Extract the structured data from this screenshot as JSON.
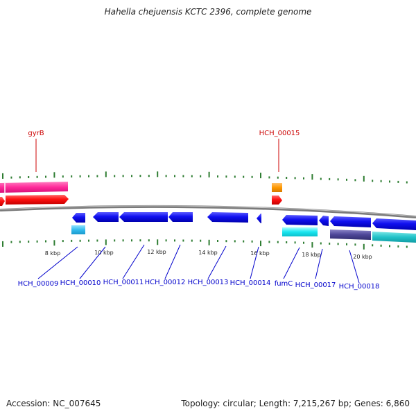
{
  "title": "Hahella chejuensis KCTC 2396, complete genome",
  "footer": {
    "accession": "Accession: NC_007645",
    "stats": "Topology: circular; Length: 7,215,267 bp; Genes: 6,860"
  },
  "scale_labels": [
    "8 kbp",
    "10 kbp",
    "12 kbp",
    "14 kbp",
    "16 kbp",
    "18 kbp",
    "20 kbp"
  ],
  "top_gene_labels": [
    "gyrB",
    "HCH_00015"
  ],
  "bottom_gene_labels": [
    "HCH_00009",
    "HCH_00010",
    "HCH_00011",
    "HCH_00012",
    "HCH_00013",
    "HCH_00014",
    "fumC",
    "HCH_00017",
    "HCH_00018"
  ],
  "colors": {
    "top_label": "#cc0000",
    "bottom_label": "#0000cc",
    "tick": "#2e7d32",
    "cds_forward": "#ff1a1a",
    "cds_reverse": "#1a1aff",
    "backbone": "#7a7a7a"
  }
}
